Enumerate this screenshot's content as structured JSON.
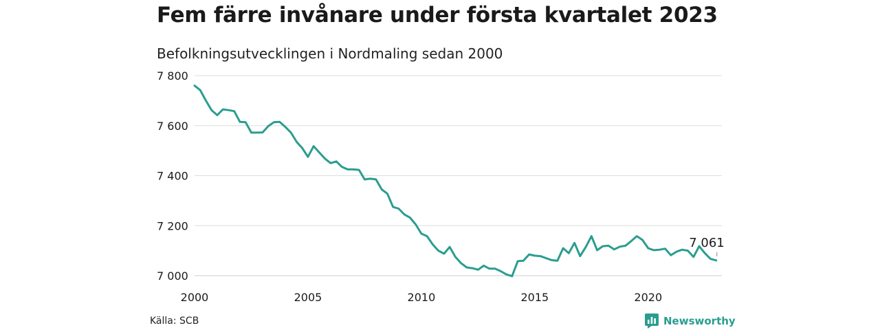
{
  "header": {
    "title": "Fem färre invånare under första kvartalet 2023",
    "subtitle": "Befolkningsutvecklingen i Nordmaling sedan 2000"
  },
  "footer": {
    "source": "Källa: SCB",
    "brand": "Newsworthy"
  },
  "colors": {
    "line": "#2a9d8f",
    "grid": "#dddddd",
    "text": "#1a1a1a",
    "brand": "#2a9d8f"
  },
  "chart_data": {
    "type": "line",
    "title": "Fem färre invånare under första kvartalet 2023",
    "subtitle": "Befolkningsutvecklingen i Nordmaling sedan 2000",
    "xlabel": "",
    "ylabel": "",
    "xlim": [
      2000,
      2023.25
    ],
    "ylim": [
      7000,
      7800
    ],
    "x_ticks": [
      2000,
      2005,
      2010,
      2015,
      2020
    ],
    "x_tick_labels": [
      "2000",
      "2005",
      "2010",
      "2015",
      "2020"
    ],
    "y_ticks": [
      7000,
      7200,
      7400,
      7600,
      7800
    ],
    "y_tick_labels": [
      "7 000",
      "7 200",
      "7 400",
      "7 600",
      "7 800"
    ],
    "grid": "horizontal",
    "annotation": {
      "x": 2023.0,
      "y": 7061,
      "label": "7 061"
    },
    "series": [
      {
        "x": [
          2000.0,
          2000.25,
          2000.5,
          2000.75,
          2001.0,
          2001.25,
          2001.5,
          2001.75,
          2002.0,
          2002.25,
          2002.5,
          2002.75,
          2003.0,
          2003.25,
          2003.5,
          2003.75,
          2004.0,
          2004.25,
          2004.5,
          2004.75,
          2005.0,
          2005.25,
          2005.5,
          2005.75,
          2006.0,
          2006.25,
          2006.5,
          2006.75,
          2007.0,
          2007.25,
          2007.5,
          2007.75,
          2008.0,
          2008.25,
          2008.5,
          2008.75,
          2009.0,
          2009.25,
          2009.5,
          2009.75,
          2010.0,
          2010.25,
          2010.5,
          2010.75,
          2011.0,
          2011.25,
          2011.5,
          2011.75,
          2012.0,
          2012.25,
          2012.5,
          2012.75,
          2013.0,
          2013.25,
          2013.5,
          2013.75,
          2014.0,
          2014.25,
          2014.5,
          2014.75,
          2015.0,
          2015.25,
          2015.5,
          2015.75,
          2016.0,
          2016.25,
          2016.5,
          2016.75,
          2017.0,
          2017.25,
          2017.5,
          2017.75,
          2018.0,
          2018.25,
          2018.5,
          2018.75,
          2019.0,
          2019.25,
          2019.5,
          2019.75,
          2020.0,
          2020.25,
          2020.5,
          2020.75,
          2021.0,
          2021.25,
          2021.5,
          2021.75,
          2022.0,
          2022.25,
          2022.5,
          2022.75,
          2023.0
        ],
        "values": [
          7760,
          7742,
          7700,
          7662,
          7642,
          7665,
          7662,
          7658,
          7615,
          7614,
          7572,
          7572,
          7573,
          7598,
          7614,
          7615,
          7595,
          7572,
          7535,
          7510,
          7475,
          7518,
          7493,
          7468,
          7450,
          7457,
          7435,
          7425,
          7425,
          7423,
          7385,
          7388,
          7385,
          7345,
          7328,
          7275,
          7268,
          7245,
          7232,
          7205,
          7168,
          7158,
          7125,
          7100,
          7088,
          7115,
          7075,
          7050,
          7033,
          7030,
          7024,
          7040,
          7028,
          7028,
          7018,
          7005,
          6998,
          7058,
          7060,
          7085,
          7080,
          7078,
          7070,
          7062,
          7060,
          7110,
          7090,
          7131,
          7078,
          7115,
          7158,
          7102,
          7118,
          7120,
          7105,
          7116,
          7120,
          7138,
          7158,
          7143,
          7110,
          7102,
          7104,
          7108,
          7082,
          7096,
          7104,
          7100,
          7075,
          7118,
          7090,
          7067,
          7061
        ]
      }
    ]
  }
}
